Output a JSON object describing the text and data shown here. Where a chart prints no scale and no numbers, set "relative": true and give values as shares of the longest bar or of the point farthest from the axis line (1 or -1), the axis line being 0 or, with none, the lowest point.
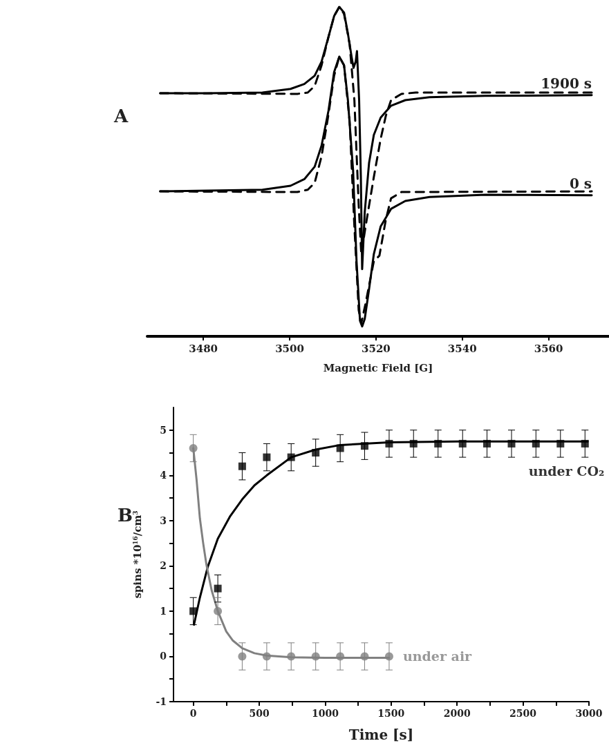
{
  "chart_data": [
    {
      "type": "line",
      "title": "A",
      "xlabel": "Magnetic Field [G]",
      "relative": true,
      "xlim": [
        3467,
        3574
      ],
      "xticks": [
        3480,
        3500,
        3520,
        3540,
        3560
      ],
      "marker": "none",
      "series": [
        {
          "name": "1900 s",
          "color": "#000000",
          "line_style": "solid",
          "x": [
            3470,
            3480.8,
            3493.7,
            3500.2,
            3503.4,
            3505.8,
            3507.4,
            3509.0,
            3510.3,
            3511.5,
            3512.6,
            3513.5,
            3514.4,
            3514.8,
            3515.3,
            3515.6,
            3516.1,
            3516.5,
            3516.8,
            3517.4,
            3518.4,
            3519.5,
            3521.1,
            3523.5,
            3526.8,
            3532.4,
            3545.3,
            3570
          ],
          "values": [
            0.738,
            0.738,
            0.74,
            0.751,
            0.766,
            0.791,
            0.834,
            0.909,
            0.972,
            1.0,
            0.983,
            0.919,
            0.845,
            0.815,
            0.834,
            0.866,
            0.717,
            0.483,
            0.204,
            0.377,
            0.526,
            0.611,
            0.664,
            0.7,
            0.717,
            0.726,
            0.73,
            0.732
          ]
        },
        {
          "color": "#000000",
          "line_style": "dashed",
          "x": [
            3470,
            3501.8,
            3504.2,
            3505.8,
            3507.4,
            3509.0,
            3510.3,
            3511.5,
            3512.6,
            3513.9,
            3515.0,
            3516.0,
            3516.6,
            3517.6,
            3519.5,
            3521.1,
            3522.3,
            3523.5,
            3525.9,
            3529.2,
            3570
          ],
          "values": [
            0.738,
            0.736,
            0.74,
            0.76,
            0.823,
            0.909,
            0.972,
            1.0,
            0.979,
            0.887,
            0.717,
            0.398,
            0.249,
            0.334,
            0.483,
            0.6,
            0.67,
            0.717,
            0.736,
            0.74,
            0.74
          ]
        },
        {
          "name": "0 s",
          "color": "#000000",
          "line_style": "solid",
          "x": [
            3470,
            3493.7,
            3500.2,
            3503.4,
            3505.8,
            3507.4,
            3509.0,
            3510.3,
            3511.5,
            3512.6,
            3513.5,
            3514.7,
            3515.5,
            3516.3,
            3516.8,
            3517.4,
            3518.4,
            3519.5,
            3521.1,
            3523.5,
            3526.8,
            3532.4,
            3545.3,
            3570
          ],
          "values": [
            0.44,
            0.445,
            0.457,
            0.477,
            0.515,
            0.579,
            0.685,
            0.802,
            0.849,
            0.823,
            0.717,
            0.504,
            0.228,
            0.047,
            0.03,
            0.053,
            0.143,
            0.249,
            0.334,
            0.387,
            0.411,
            0.423,
            0.43,
            0.428
          ]
        },
        {
          "color": "#000000",
          "line_style": "dashed",
          "x": [
            3470,
            3501.8,
            3504.2,
            3505.8,
            3507.4,
            3509.0,
            3510.3,
            3511.5,
            3512.6,
            3513.9,
            3515.0,
            3516.0,
            3516.6,
            3517.6,
            3519.5,
            3520.8,
            3522.3,
            3523.5,
            3525.9,
            3570
          ],
          "values": [
            0.44,
            0.438,
            0.445,
            0.466,
            0.547,
            0.674,
            0.791,
            0.849,
            0.823,
            0.653,
            0.334,
            0.079,
            0.04,
            0.1,
            0.228,
            0.245,
            0.355,
            0.419,
            0.438,
            0.44
          ]
        }
      ]
    },
    {
      "type": "scatter",
      "title": "B",
      "xlabel": "Time [s]",
      "ylabel": "spins *10$^{16}$/cm$^{3}$",
      "xlim": [
        -150,
        3000
      ],
      "ylim": [
        -1,
        5.5
      ],
      "xticks": [
        0,
        {
          "value": 250,
          "label": null
        },
        500,
        {
          "value": 750,
          "label": null
        },
        1000,
        {
          "value": 1250,
          "label": null
        },
        1500,
        {
          "value": 1750,
          "label": null
        },
        2000,
        {
          "value": 2250,
          "label": null
        },
        2500,
        {
          "value": 2750,
          "label": null
        },
        3000
      ],
      "yticks": [
        -1,
        {
          "value": -0.5,
          "label": null
        },
        0,
        {
          "value": 0.5,
          "label": null
        },
        1,
        {
          "value": 1.5,
          "label": null
        },
        2,
        {
          "value": 2.5,
          "label": null
        },
        3,
        {
          "value": 3.5,
          "label": null
        },
        4,
        {
          "value": 4.5,
          "label": null
        },
        5
      ],
      "series": [
        {
          "type": "line",
          "color": "#000000",
          "marker": "none",
          "x": [
            5,
            50,
            109,
            186,
            280,
            371,
            464,
            557,
            742,
            928,
            1114,
            1485,
            2000,
            2990
          ],
          "values": [
            0.7,
            1.3,
            1.97,
            2.6,
            3.1,
            3.47,
            3.78,
            4.0,
            4.4,
            4.57,
            4.67,
            4.73,
            4.75,
            4.75
          ]
        },
        {
          "type": "line",
          "color": "#808080",
          "marker": "none",
          "x": [
            0,
            25,
            50,
            75,
            100,
            140,
            186,
            250,
            300,
            371,
            464,
            557,
            743,
            1000,
            1485
          ],
          "values": [
            4.6,
            3.9,
            3.05,
            2.5,
            2.02,
            1.45,
            1.0,
            0.55,
            0.35,
            0.18,
            0.07,
            0.02,
            -0.02,
            -0.03,
            -0.03
          ]
        },
        {
          "name": "under CO₂",
          "color": "#000000",
          "marker": "square",
          "x": [
            0,
            186,
            371,
            557,
            742,
            928,
            1114,
            1299,
            1485,
            1670,
            1856,
            2042,
            2227,
            2413,
            2598,
            2784,
            2970
          ],
          "values": [
            1.0,
            1.5,
            4.2,
            4.4,
            4.4,
            4.5,
            4.6,
            4.65,
            4.7,
            4.7,
            4.7,
            4.7,
            4.7,
            4.7,
            4.7,
            4.7,
            4.7
          ],
          "errors": [
            0.3,
            0.3,
            0.3,
            0.3,
            0.3,
            0.3,
            0.3,
            0.3,
            0.3,
            0.3,
            0.3,
            0.3,
            0.3,
            0.3,
            0.3,
            0.3,
            0.3
          ]
        },
        {
          "name": "under air",
          "color": "#808080",
          "marker": "circle",
          "x": [
            0,
            186,
            371,
            557,
            742,
            928,
            1114,
            1299,
            1485
          ],
          "values": [
            4.6,
            1.0,
            0,
            0,
            0,
            0,
            0,
            0,
            0
          ],
          "errors": [
            0.3,
            0.3,
            0.3,
            0.3,
            0.3,
            0.3,
            0.3,
            0.3,
            0.3
          ]
        }
      ]
    }
  ]
}
